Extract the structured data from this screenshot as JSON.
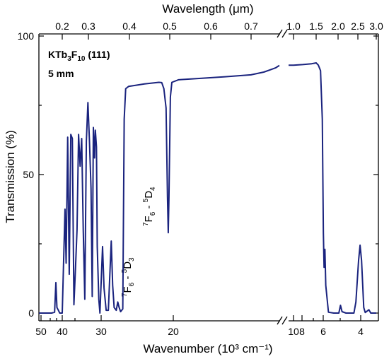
{
  "chart_data": {
    "type": "line",
    "title": "",
    "xlabel": "Wavenumber (10³ cm⁻¹)",
    "x2label": "Wavelength (μm)",
    "ylabel": "Transmission (%)",
    "ylim": [
      0,
      100
    ],
    "yticks": [
      0,
      50,
      100
    ],
    "bottom_ticks": {
      "left_segment": [
        50,
        40,
        30,
        20
      ],
      "right_segment_labels": [
        "10",
        "8",
        "6",
        "4"
      ]
    },
    "top_ticks": {
      "left_segment": [
        "0.2",
        "0.3",
        "0.4",
        "0.5",
        "0.6",
        "0.7"
      ],
      "right_segment": [
        "1.0",
        "1.5",
        "2.0",
        "2.5",
        "3.0"
      ]
    },
    "axis_break": "double slash between ~0.78 and ~0.95 μm",
    "sample_label_main": "KTb",
    "sample_label_sub1": "3",
    "sample_label_mid": "F",
    "sample_label_sub2": "10",
    "sample_label_tail": " (111)",
    "thickness_label": "5 mm",
    "annotations": [
      {
        "prefix_sup": "7",
        "base1": "F",
        "sub1": "6",
        "mid": " - ",
        "prefix_sup2": "5",
        "base2": "D",
        "sub2": "3",
        "at_wavenumber": 26.5
      },
      {
        "prefix_sup": "7",
        "base1": "F",
        "sub1": "6",
        "mid": " - ",
        "prefix_sup2": "5",
        "base2": "D",
        "sub2": "4",
        "at_wavenumber": 20.6
      }
    ],
    "series": [
      {
        "color": "#1a237e",
        "segment_uv_vis_wavenumber": [
          [
            52,
            0
          ],
          [
            45,
            0
          ],
          [
            43.6,
            0.3
          ],
          [
            43.0,
            11
          ],
          [
            42.5,
            2
          ],
          [
            41.8,
            1
          ],
          [
            41.2,
            0
          ],
          [
            40.0,
            0
          ],
          [
            39.3,
            37.5
          ],
          [
            39.0,
            18
          ],
          [
            38.6,
            63.5
          ],
          [
            38.2,
            14
          ],
          [
            37.8,
            64.5
          ],
          [
            37.4,
            63
          ],
          [
            37.0,
            3
          ],
          [
            36.6,
            16
          ],
          [
            36.2,
            30
          ],
          [
            35.8,
            64.5
          ],
          [
            35.4,
            53
          ],
          [
            35.0,
            63
          ],
          [
            34.6,
            30
          ],
          [
            34.2,
            5
          ],
          [
            33.8,
            62
          ],
          [
            33.4,
            76
          ],
          [
            33.0,
            62
          ],
          [
            32.6,
            45
          ],
          [
            32.3,
            6
          ],
          [
            32.0,
            67
          ],
          [
            31.7,
            56
          ],
          [
            31.5,
            66
          ],
          [
            31.2,
            60
          ],
          [
            31.0,
            24
          ],
          [
            30.6,
            5
          ],
          [
            30.3,
            0
          ],
          [
            29.8,
            24
          ],
          [
            29.6,
            9
          ],
          [
            29.3,
            1
          ],
          [
            29.0,
            1
          ],
          [
            28.6,
            26
          ],
          [
            28.4,
            10
          ],
          [
            28.2,
            2
          ],
          [
            27.9,
            1
          ],
          [
            27.7,
            4
          ],
          [
            27.5,
            2
          ],
          [
            27.3,
            0.5
          ],
          [
            27.0,
            1.5
          ],
          [
            26.8,
            70
          ],
          [
            26.6,
            81
          ],
          [
            26.2,
            81.8
          ],
          [
            25.0,
            82.3
          ],
          [
            24.0,
            82.7
          ],
          [
            23.0,
            83.0
          ],
          [
            22.0,
            83.3
          ],
          [
            21.6,
            83.2
          ],
          [
            21.3,
            81
          ],
          [
            21.0,
            74
          ],
          [
            20.8,
            42
          ],
          [
            20.7,
            29
          ],
          [
            20.6,
            42
          ],
          [
            20.4,
            78
          ],
          [
            20.2,
            83.3
          ],
          [
            19.6,
            84.2
          ],
          [
            18.0,
            84.7
          ],
          [
            16.0,
            85.3
          ],
          [
            14.0,
            86.0
          ],
          [
            13.0,
            87.0
          ],
          [
            12.1,
            88.5
          ],
          [
            11.8,
            89.4
          ]
        ],
        "segment_ir_wavelength_um": [
          [
            0.95,
            89.5
          ],
          [
            1.0,
            89.5
          ],
          [
            1.2,
            89.7
          ],
          [
            1.4,
            90.0
          ],
          [
            1.5,
            90.3
          ],
          [
            1.55,
            89.5
          ],
          [
            1.6,
            87.5
          ],
          [
            1.64,
            70
          ],
          [
            1.665,
            29
          ],
          [
            1.68,
            16.5
          ],
          [
            1.7,
            23
          ],
          [
            1.72,
            10
          ],
          [
            1.78,
            0.3
          ],
          [
            1.9,
            0
          ],
          [
            2.02,
            0
          ],
          [
            2.06,
            2.8
          ],
          [
            2.1,
            0.5
          ],
          [
            2.2,
            0
          ],
          [
            2.4,
            0
          ],
          [
            2.45,
            4
          ],
          [
            2.52,
            19
          ],
          [
            2.56,
            24.5
          ],
          [
            2.6,
            19
          ],
          [
            2.66,
            2
          ],
          [
            2.7,
            0.2
          ],
          [
            2.8,
            1.2
          ],
          [
            2.85,
            0
          ],
          [
            3.0,
            0
          ]
        ]
      }
    ]
  }
}
